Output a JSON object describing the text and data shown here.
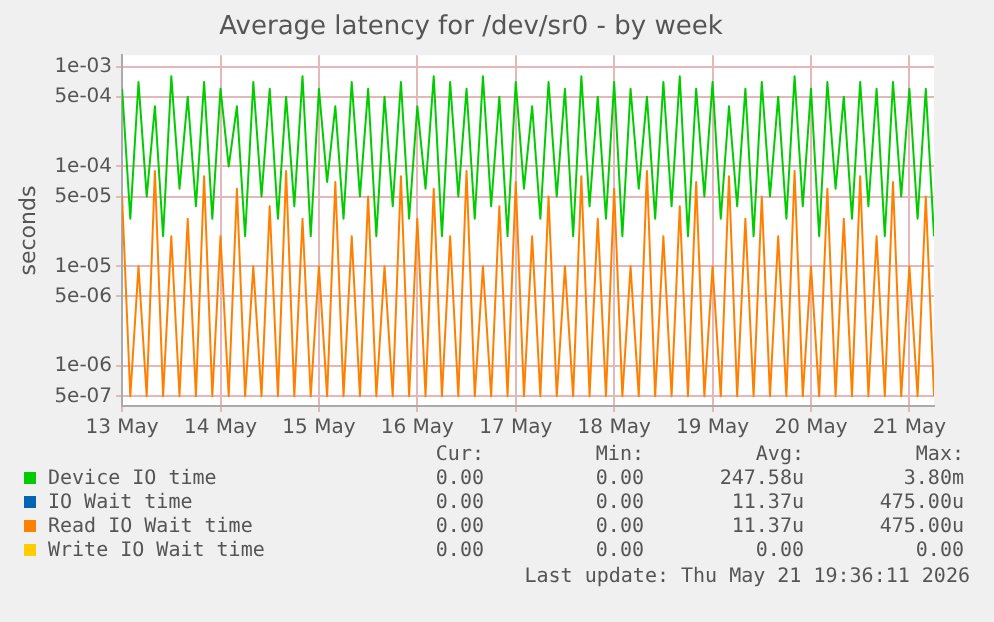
{
  "chart_data": {
    "type": "line",
    "title": "Average latency for /dev/sr0 - by week",
    "ylabel": "seconds",
    "log": "y",
    "grid": true,
    "legend": "bottom",
    "marker": "none",
    "line_style": "solid",
    "xlim": [
      "2026-05-13T00:00",
      "2026-05-21T06:00"
    ],
    "xticks": [
      {
        "value": "2026-05-13",
        "label": "13 May"
      },
      {
        "value": "2026-05-14",
        "label": "14 May"
      },
      {
        "value": "2026-05-15",
        "label": "15 May"
      },
      {
        "value": "2026-05-16",
        "label": "16 May"
      },
      {
        "value": "2026-05-17",
        "label": "17 May"
      },
      {
        "value": "2026-05-18",
        "label": "18 May"
      },
      {
        "value": "2026-05-19",
        "label": "19 May"
      },
      {
        "value": "2026-05-20",
        "label": "20 May"
      },
      {
        "value": "2026-05-21",
        "label": "21 May"
      }
    ],
    "ylim": [
      4e-07,
      0.0013
    ],
    "yticks": [
      {
        "value": 5e-07,
        "label": "5e-07"
      },
      {
        "value": 1e-06,
        "label": "1e-06"
      },
      {
        "value": 5e-06,
        "label": "5e-06"
      },
      {
        "value": 1e-05,
        "label": "1e-05"
      },
      {
        "value": 5e-05,
        "label": "5e-05"
      },
      {
        "value": 0.0001,
        "label": "1e-04"
      },
      {
        "value": 0.0005,
        "label": "5e-04"
      },
      {
        "value": 0.001,
        "label": "1e-03"
      }
    ],
    "x": [
      "2026-05-13T00:00",
      "2026-05-13T02:00",
      "2026-05-13T04:00",
      "2026-05-13T06:00",
      "2026-05-13T08:00",
      "2026-05-13T10:00",
      "2026-05-13T12:00",
      "2026-05-13T14:00",
      "2026-05-13T16:00",
      "2026-05-13T18:00",
      "2026-05-13T20:00",
      "2026-05-13T22:00",
      "2026-05-14T00:00",
      "2026-05-14T02:00",
      "2026-05-14T04:00",
      "2026-05-14T06:00",
      "2026-05-14T08:00",
      "2026-05-14T10:00",
      "2026-05-14T12:00",
      "2026-05-14T14:00",
      "2026-05-14T16:00",
      "2026-05-14T18:00",
      "2026-05-14T20:00",
      "2026-05-14T22:00",
      "2026-05-15T00:00",
      "2026-05-15T02:00",
      "2026-05-15T04:00",
      "2026-05-15T06:00",
      "2026-05-15T08:00",
      "2026-05-15T10:00",
      "2026-05-15T12:00",
      "2026-05-15T14:00",
      "2026-05-15T16:00",
      "2026-05-15T18:00",
      "2026-05-15T20:00",
      "2026-05-15T22:00",
      "2026-05-16T00:00",
      "2026-05-16T02:00",
      "2026-05-16T04:00",
      "2026-05-16T06:00",
      "2026-05-16T08:00",
      "2026-05-16T10:00",
      "2026-05-16T12:00",
      "2026-05-16T14:00",
      "2026-05-16T16:00",
      "2026-05-16T18:00",
      "2026-05-16T20:00",
      "2026-05-16T22:00",
      "2026-05-17T00:00",
      "2026-05-17T02:00",
      "2026-05-17T04:00",
      "2026-05-17T06:00",
      "2026-05-17T08:00",
      "2026-05-17T10:00",
      "2026-05-17T12:00",
      "2026-05-17T14:00",
      "2026-05-17T16:00",
      "2026-05-17T18:00",
      "2026-05-17T20:00",
      "2026-05-17T22:00",
      "2026-05-18T00:00",
      "2026-05-18T02:00",
      "2026-05-18T04:00",
      "2026-05-18T06:00",
      "2026-05-18T08:00",
      "2026-05-18T10:00",
      "2026-05-18T12:00",
      "2026-05-18T14:00",
      "2026-05-18T16:00",
      "2026-05-18T18:00",
      "2026-05-18T20:00",
      "2026-05-18T22:00",
      "2026-05-19T00:00",
      "2026-05-19T02:00",
      "2026-05-19T04:00",
      "2026-05-19T06:00",
      "2026-05-19T08:00",
      "2026-05-19T10:00",
      "2026-05-19T12:00",
      "2026-05-19T14:00",
      "2026-05-19T16:00",
      "2026-05-19T18:00",
      "2026-05-19T20:00",
      "2026-05-19T22:00",
      "2026-05-20T00:00",
      "2026-05-20T02:00",
      "2026-05-20T04:00",
      "2026-05-20T06:00",
      "2026-05-20T08:00",
      "2026-05-20T10:00",
      "2026-05-20T12:00",
      "2026-05-20T14:00",
      "2026-05-20T16:00",
      "2026-05-20T18:00",
      "2026-05-20T20:00",
      "2026-05-20T22:00",
      "2026-05-21T00:00",
      "2026-05-21T02:00",
      "2026-05-21T04:00",
      "2026-05-21T06:00"
    ],
    "series": [
      {
        "name": "Device IO time",
        "color": "#00cc00",
        "values": [
          0.0006,
          3e-05,
          0.0007,
          5e-05,
          0.0004,
          2e-05,
          0.0008,
          6e-05,
          0.0005,
          4e-05,
          0.0007,
          3e-05,
          0.0006,
          0.0001,
          0.0004,
          2e-05,
          0.0007,
          5e-05,
          0.0006,
          3e-05,
          0.0005,
          4e-05,
          0.0008,
          2e-05,
          0.0006,
          7e-05,
          0.0004,
          3e-05,
          0.0007,
          5e-05,
          0.0006,
          2e-05,
          0.0005,
          4e-05,
          0.0007,
          3e-05,
          0.0004,
          6e-05,
          0.0008,
          2e-05,
          0.0007,
          5e-05,
          0.0006,
          3e-05,
          0.0008,
          4e-05,
          0.0005,
          2e-05,
          0.0007,
          6e-05,
          0.0004,
          3e-05,
          0.0007,
          5e-05,
          0.0006,
          2e-05,
          0.0008,
          4e-05,
          0.0005,
          3e-05,
          0.0007,
          2e-05,
          0.0006,
          6e-05,
          0.0005,
          3e-05,
          0.0007,
          4e-05,
          0.0008,
          2e-05,
          0.0006,
          5e-05,
          0.0007,
          3e-05,
          0.0004,
          4e-05,
          0.0006,
          2e-05,
          0.0007,
          5e-05,
          0.0005,
          3e-05,
          0.0008,
          4e-05,
          0.0006,
          2e-05,
          0.0007,
          6e-05,
          0.0005,
          3e-05,
          0.0007,
          4e-05,
          0.0006,
          2e-05,
          0.0007,
          5e-05,
          0.0006,
          3e-05,
          0.0006,
          2e-05
        ]
      },
      {
        "name": "IO Wait time",
        "color": "#0066b3",
        "values": [
          null,
          null,
          null,
          null,
          null,
          null,
          null,
          null,
          null,
          null,
          null,
          null,
          null,
          null,
          null,
          null,
          null,
          null,
          null,
          null,
          null,
          null,
          null,
          null,
          null,
          null,
          null,
          null,
          null,
          null,
          null,
          null,
          null,
          null,
          null,
          null,
          null,
          null,
          null,
          null,
          null,
          null,
          null,
          null,
          null,
          null,
          null,
          null,
          null,
          null,
          null,
          null,
          null,
          null,
          null,
          null,
          null,
          null,
          null,
          null,
          null,
          null,
          null,
          null,
          null,
          null,
          null,
          null,
          null,
          null,
          null,
          null,
          null,
          null,
          null,
          null,
          null,
          null,
          null,
          null,
          null,
          null,
          null,
          null,
          null,
          null,
          null,
          null,
          null,
          null,
          null,
          null,
          null,
          null,
          null,
          null,
          null,
          null,
          null,
          null
        ]
      },
      {
        "name": "Read IO Wait time",
        "color": "#ff8000",
        "values": [
          5e-05,
          5e-07,
          1e-05,
          5e-07,
          9e-05,
          5e-07,
          2e-05,
          5e-07,
          3e-05,
          5e-07,
          8e-05,
          5e-07,
          2e-05,
          5e-07,
          6e-05,
          5e-07,
          1e-05,
          5e-07,
          4e-05,
          5e-07,
          9e-05,
          5e-07,
          3e-05,
          5e-07,
          1e-05,
          5e-07,
          7e-05,
          5e-07,
          2e-05,
          5e-07,
          5e-05,
          5e-07,
          1e-05,
          5e-07,
          8e-05,
          5e-07,
          3e-05,
          5e-07,
          6e-05,
          5e-07,
          2e-05,
          5e-07,
          9e-05,
          5e-07,
          1e-05,
          5e-07,
          4e-05,
          5e-07,
          7e-05,
          5e-07,
          2e-05,
          5e-07,
          5e-05,
          5e-07,
          1e-05,
          5e-07,
          8e-05,
          5e-07,
          3e-05,
          5e-07,
          6e-05,
          5e-07,
          1e-05,
          5e-07,
          9e-05,
          5e-07,
          2e-05,
          5e-07,
          4e-05,
          5e-07,
          7e-05,
          5e-07,
          1e-05,
          5e-07,
          8e-05,
          5e-07,
          3e-05,
          5e-07,
          5e-05,
          5e-07,
          2e-05,
          5e-07,
          9e-05,
          5e-07,
          1e-05,
          5e-07,
          6e-05,
          5e-07,
          3e-05,
          5e-07,
          8e-05,
          5e-07,
          2e-05,
          5e-07,
          7e-05,
          5e-07,
          1e-05,
          5e-07,
          5e-05,
          5e-07
        ]
      },
      {
        "name": "Write IO Wait time",
        "color": "#ffcc00",
        "values": [
          null,
          null,
          null,
          null,
          null,
          null,
          null,
          null,
          null,
          null,
          null,
          null,
          null,
          null,
          null,
          null,
          null,
          null,
          null,
          null,
          null,
          null,
          null,
          null,
          null,
          null,
          null,
          null,
          null,
          null,
          null,
          null,
          null,
          null,
          null,
          null,
          null,
          null,
          null,
          null,
          null,
          null,
          null,
          null,
          null,
          null,
          null,
          null,
          null,
          null,
          null,
          null,
          null,
          null,
          null,
          null,
          null,
          null,
          null,
          null,
          null,
          null,
          null,
          null,
          null,
          null,
          null,
          null,
          null,
          null,
          null,
          null,
          null,
          null,
          null,
          null,
          null,
          null,
          null,
          null,
          null,
          null,
          null,
          null,
          null,
          null,
          null,
          null,
          null,
          null,
          null,
          null,
          null,
          null,
          null,
          null,
          null,
          null,
          null,
          null
        ]
      }
    ],
    "annotations": [
      "Cur:",
      "Min:",
      "Avg:",
      "Max:",
      "0.00",
      "0.00",
      "247.58u",
      "3.80m",
      "0.00",
      "0.00",
      "11.37u",
      "475.00u",
      "0.00",
      "0.00",
      "11.37u",
      "475.00u",
      "0.00",
      "0.00",
      "0.00",
      "0.00",
      "Last update: Thu May 21 19:36:11 2026"
    ]
  }
}
